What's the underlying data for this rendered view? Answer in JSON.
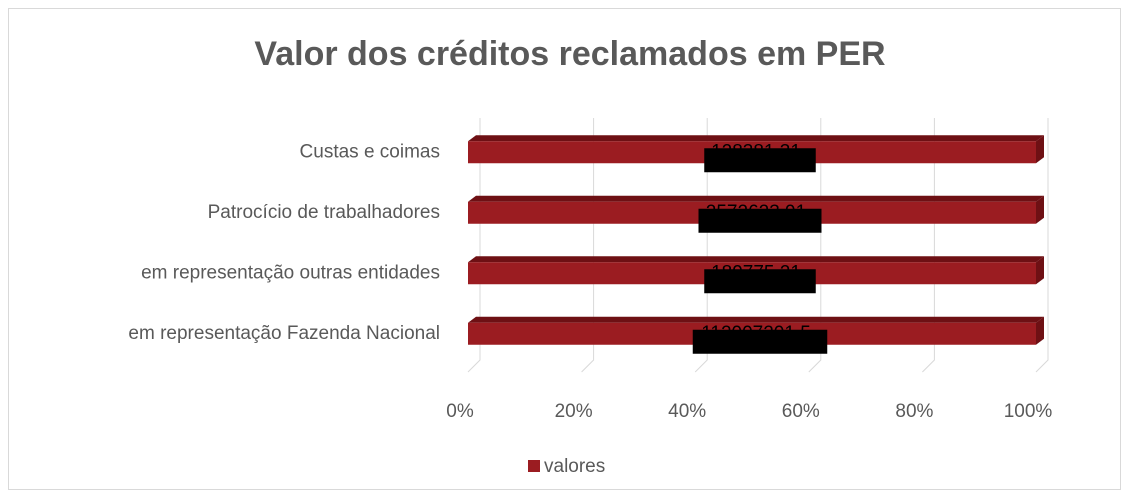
{
  "chart_data": {
    "type": "bar",
    "orientation": "horizontal",
    "stacking": "percent",
    "title": "Valor dos créditos reclamados em PER",
    "categories": [
      "Custas e coimas",
      "Patrocício de trabalhadores",
      "em representação outras entidades",
      "em representação Fazenda Nacional"
    ],
    "series": [
      {
        "name": "valores",
        "color": "#9b1c21",
        "values": [
          128381.31,
          2572623.91,
          189775.21,
          112007201.5
        ],
        "value_labels": [
          "128381,31",
          "2572623,91",
          "189775,21",
          "112007201,5"
        ]
      }
    ],
    "xlim": [
      0,
      100
    ],
    "xticks": [
      {
        "value": 0,
        "label": "0%"
      },
      {
        "value": 20,
        "label": "20%"
      },
      {
        "value": 40,
        "label": "40%"
      },
      {
        "value": 60,
        "label": "60%"
      },
      {
        "value": 80,
        "label": "80%"
      },
      {
        "value": 100,
        "label": "100%"
      }
    ],
    "grid": true,
    "legend": "bottom"
  }
}
